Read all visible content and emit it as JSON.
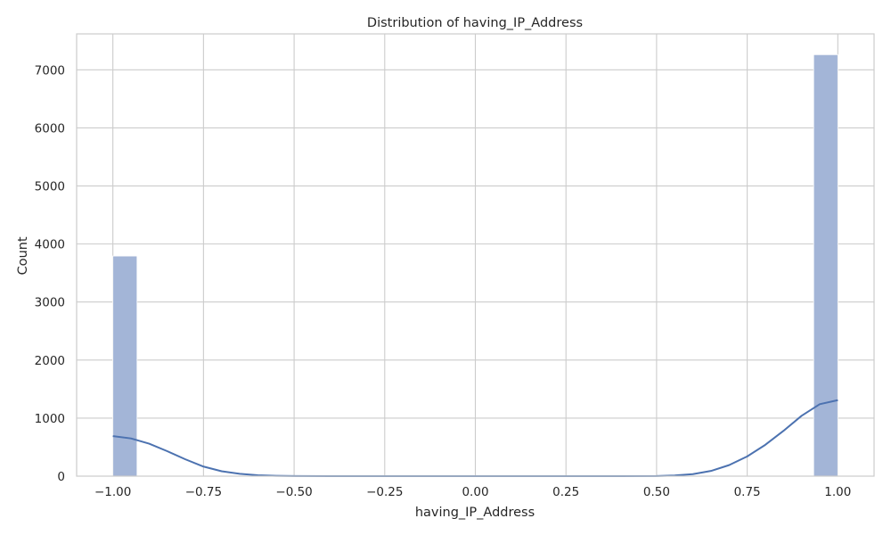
{
  "chart_data": {
    "type": "bar",
    "title": "Distribution of having_IP_Address",
    "xlabel": "having_IP_Address",
    "ylabel": "Count",
    "xlim": [
      -1.1,
      1.1
    ],
    "ylim": [
      0,
      7620
    ],
    "xticks": [
      -1.0,
      -0.75,
      -0.5,
      -0.25,
      0.0,
      0.25,
      0.5,
      0.75,
      1.0
    ],
    "xtick_labels": [
      "−1.00",
      "−0.75",
      "−0.50",
      "−0.25",
      "0.00",
      "0.25",
      "0.50",
      "0.75",
      "1.00"
    ],
    "yticks": [
      0,
      1000,
      2000,
      3000,
      4000,
      5000,
      6000,
      7000
    ],
    "ytick_labels": [
      "0",
      "1000",
      "2000",
      "3000",
      "4000",
      "5000",
      "6000",
      "7000"
    ],
    "grid": true,
    "bins": [
      {
        "x_start": -1.0,
        "x_end": -0.9333,
        "count": 3793
      },
      {
        "x_start": 0.9333,
        "x_end": 1.0,
        "count": 7262
      }
    ],
    "kde_curve": {
      "x": [
        -1.0,
        -0.95,
        -0.9,
        -0.85,
        -0.8,
        -0.75,
        -0.7,
        -0.65,
        -0.6,
        -0.55,
        -0.5,
        -0.4,
        -0.3,
        -0.2,
        -0.1,
        0.0,
        0.1,
        0.2,
        0.3,
        0.4,
        0.5,
        0.55,
        0.6,
        0.65,
        0.7,
        0.75,
        0.8,
        0.85,
        0.9,
        0.95,
        1.0
      ],
      "y": [
        690,
        650,
        560,
        430,
        290,
        165,
        85,
        40,
        16,
        6,
        2,
        0,
        0,
        0,
        0,
        0,
        0,
        0,
        0,
        0,
        2,
        12,
        35,
        90,
        190,
        340,
        540,
        780,
        1040,
        1240,
        1310
      ]
    },
    "colors": {
      "bar_fill": "#a3b5d7",
      "bar_edge": "#ffffff",
      "kde_line": "#4c72b0",
      "grid": "#cccccc",
      "frame": "#cccccc"
    }
  }
}
